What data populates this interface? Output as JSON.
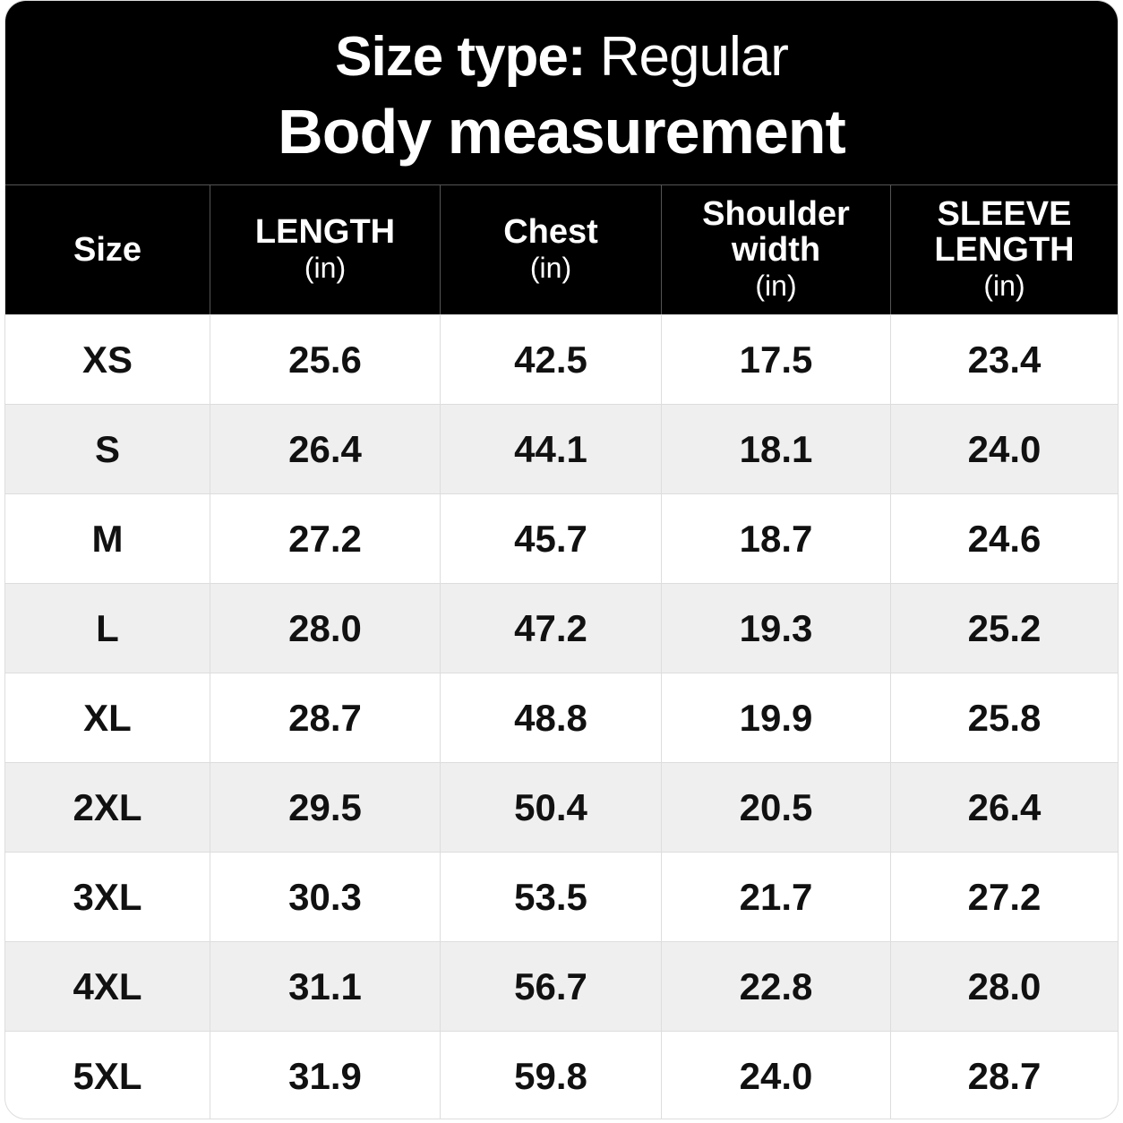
{
  "header": {
    "title": {
      "label": "Size type:",
      "value": "Regular"
    },
    "subtitle": "Body measurement"
  },
  "table": {
    "columns": [
      {
        "name": "Size"
      },
      {
        "name": "LENGTH",
        "unit": "(in)"
      },
      {
        "name": "Chest",
        "unit": "(in)"
      },
      {
        "name": "Shoulder width",
        "unit": "(in)"
      },
      {
        "name": "SLEEVE LENGTH",
        "unit": "(in)"
      }
    ],
    "rows": [
      [
        "XS",
        "25.6",
        "42.5",
        "17.5",
        "23.4"
      ],
      [
        "S",
        "26.4",
        "44.1",
        "18.1",
        "24.0"
      ],
      [
        "M",
        "27.2",
        "45.7",
        "18.7",
        "24.6"
      ],
      [
        "L",
        "28.0",
        "47.2",
        "19.3",
        "25.2"
      ],
      [
        "XL",
        "28.7",
        "48.8",
        "19.9",
        "25.8"
      ],
      [
        "2XL",
        "29.5",
        "50.4",
        "20.5",
        "26.4"
      ],
      [
        "3XL",
        "30.3",
        "53.5",
        "21.7",
        "27.2"
      ],
      [
        "4XL",
        "31.1",
        "56.7",
        "22.8",
        "28.0"
      ],
      [
        "5XL",
        "31.9",
        "59.8",
        "24.0",
        "28.7"
      ]
    ]
  }
}
